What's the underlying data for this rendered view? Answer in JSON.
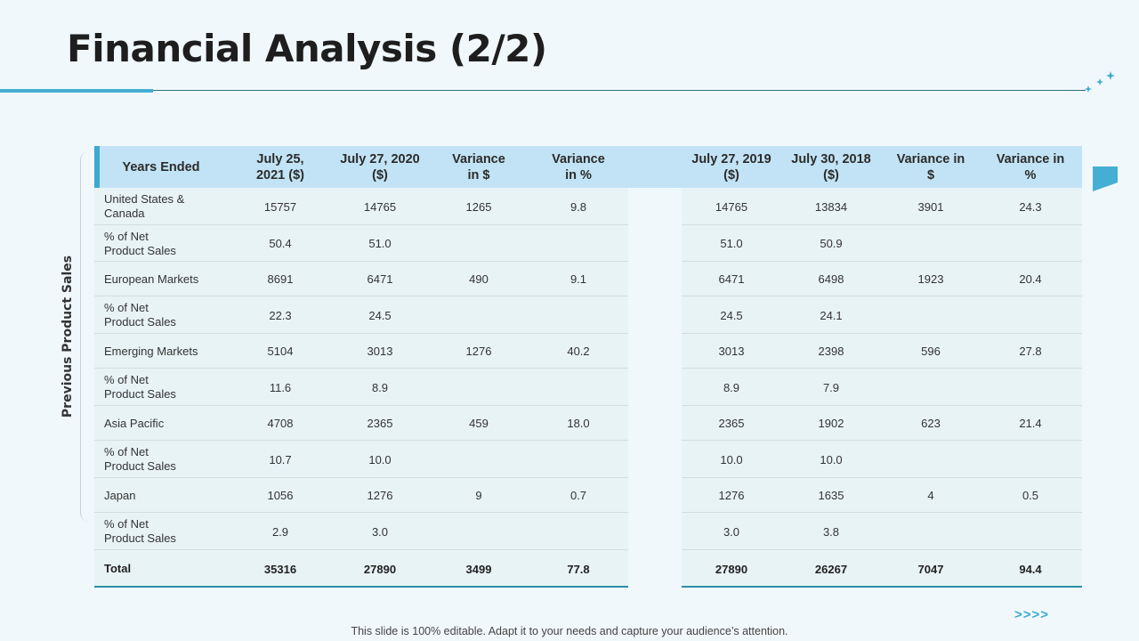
{
  "slide": {
    "title": "Financial Analysis (2/2)",
    "side_label": "Previous Product Sales",
    "footer": "This slide is 100% editable. Adapt it to your needs and capture your audience’s attention.",
    "next_icon": ">>>>"
  },
  "table": {
    "headers": {
      "label": "Years Ended",
      "c1": "July 25,\n2021 ($)",
      "c2": "July 27, 2020\n($)",
      "c3": "Variance\nin $",
      "c4": "Variance\nin %",
      "c5": "July 27, 2019\n($)",
      "c6": "July 30, 2018\n($)",
      "c7": "Variance in\n$",
      "c8": "Variance in\n%"
    },
    "rows": [
      {
        "label": "United States &\nCanada",
        "c1": "15757",
        "c2": "14765",
        "c3": "1265",
        "c4": "9.8",
        "c5": "14765",
        "c6": "13834",
        "c7": "3901",
        "c8": "24.3"
      },
      {
        "label": "% of Net\nProduct Sales",
        "c1": "50.4",
        "c2": "51.0",
        "c3": "",
        "c4": "",
        "c5": "51.0",
        "c6": "50.9",
        "c7": "",
        "c8": ""
      },
      {
        "label": "European Markets",
        "c1": "8691",
        "c2": "6471",
        "c3": "490",
        "c4": "9.1",
        "c5": "6471",
        "c6": "6498",
        "c7": "1923",
        "c8": "20.4"
      },
      {
        "label": "% of Net\nProduct Sales",
        "c1": "22.3",
        "c2": "24.5",
        "c3": "",
        "c4": "",
        "c5": "24.5",
        "c6": "24.1",
        "c7": "",
        "c8": ""
      },
      {
        "label": "Emerging Markets",
        "c1": "5104",
        "c2": "3013",
        "c3": "1276",
        "c4": "40.2",
        "c5": "3013",
        "c6": "2398",
        "c7": "596",
        "c8": "27.8"
      },
      {
        "label": "% of Net\nProduct Sales",
        "c1": "11.6",
        "c2": "8.9",
        "c3": "",
        "c4": "",
        "c5": "8.9",
        "c6": "7.9",
        "c7": "",
        "c8": ""
      },
      {
        "label": "Asia Pacific",
        "c1": "4708",
        "c2": "2365",
        "c3": "459",
        "c4": "18.0",
        "c5": "2365",
        "c6": "1902",
        "c7": "623",
        "c8": "21.4"
      },
      {
        "label": "% of Net\nProduct Sales",
        "c1": "10.7",
        "c2": "10.0",
        "c3": "",
        "c4": "",
        "c5": "10.0",
        "c6": "10.0",
        "c7": "",
        "c8": ""
      },
      {
        "label": "Japan",
        "c1": "1056",
        "c2": "1276",
        "c3": "9",
        "c4": "0.7",
        "c5": "1276",
        "c6": "1635",
        "c7": "4",
        "c8": "0.5"
      },
      {
        "label": "% of Net\nProduct Sales",
        "c1": "2.9",
        "c2": "3.0",
        "c3": "",
        "c4": "",
        "c5": "3.0",
        "c6": "3.8",
        "c7": "",
        "c8": ""
      }
    ],
    "total": {
      "label": "Total",
      "c1": "35316",
      "c2": "27890",
      "c3": "3499",
      "c4": "77.8",
      "c5": "27890",
      "c6": "26267",
      "c7": "7047",
      "c8": "94.4"
    }
  }
}
